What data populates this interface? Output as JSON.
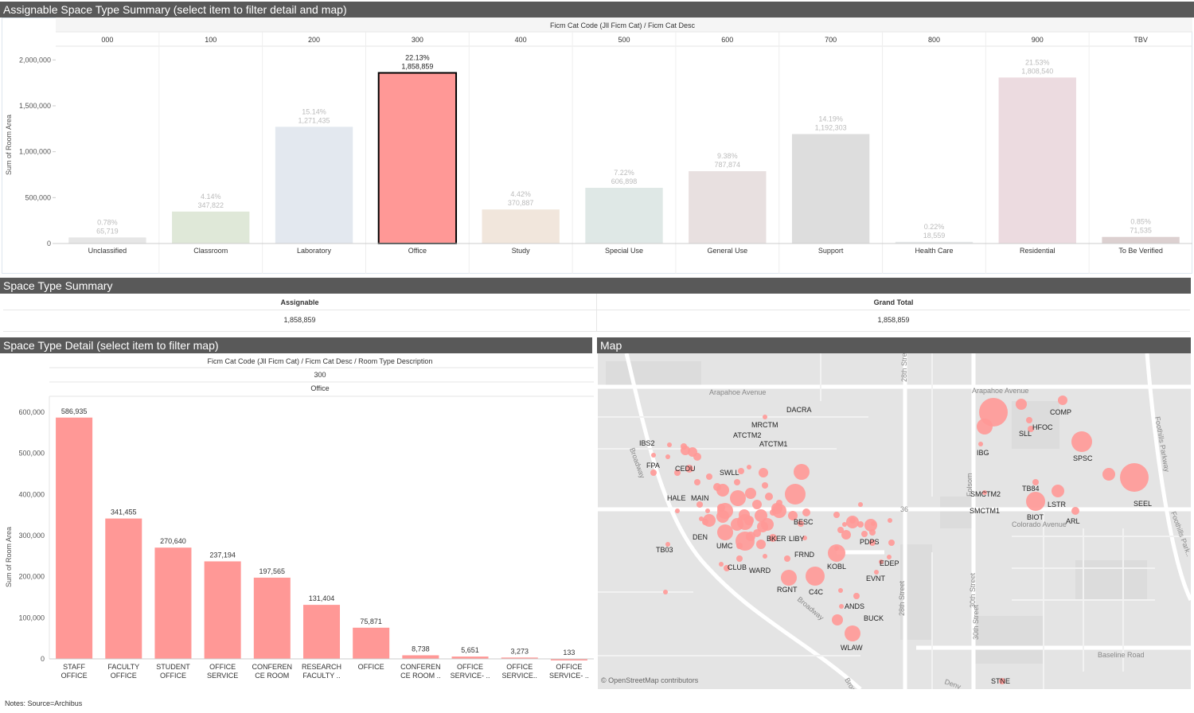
{
  "sections": {
    "assignable": "Assignable Space Type Summary (select item to filter detail and map)",
    "space_summary": "Space Type Summary",
    "detail": "Space Type Detail (select item to filter map)",
    "map": "Map"
  },
  "top_chart": {
    "header": "Ficm Cat Code (Jll Ficm Cat)  /  Ficm Cat Desc",
    "ylabel": "Sum of Room Area",
    "yticks": [
      "2,000,000",
      "1,500,000",
      "1,000,000",
      "500,000",
      "0"
    ],
    "ymax": 2150000
  },
  "summary": {
    "col1_header": "Assignable",
    "col2_header": "Grand Total",
    "col1_value": "1,858,859",
    "col2_value": "1,858,859"
  },
  "detail_chart": {
    "header": "Ficm Cat Code (Jll Ficm Cat)  /  Ficm Cat Desc  /  Room Type Description",
    "code": "300",
    "desc": "Office",
    "ylabel": "Sum of Room Area",
    "yticks": [
      "600,000",
      "500,000",
      "400,000",
      "300,000",
      "200,000",
      "100,000",
      "0"
    ],
    "ymax": 600000
  },
  "chart_data": [
    {
      "type": "bar",
      "categories": [
        "000",
        "100",
        "200",
        "300",
        "400",
        "500",
        "600",
        "700",
        "800",
        "900",
        "TBV"
      ],
      "category_desc": [
        "Unclassified",
        "Classroom",
        "Laboratory",
        "Office",
        "Study",
        "Special Use",
        "General Use",
        "Support",
        "Health Care",
        "Residential",
        "To Be Verified"
      ],
      "values": [
        65719,
        347822,
        1271435,
        1858859,
        370887,
        606898,
        787874,
        1192303,
        18559,
        1808540,
        71535
      ],
      "value_labels": [
        "65,719",
        "347,822",
        "1,271,435",
        "1,858,859",
        "370,887",
        "606,898",
        "787,874",
        "1,192,303",
        "18,559",
        "1,808,540",
        "71,535"
      ],
      "pct_labels": [
        "0.78%",
        "4.14%",
        "15.14%",
        "22.13%",
        "4.42%",
        "7.22%",
        "9.38%",
        "14.19%",
        "0.22%",
        "21.53%",
        "0.85%"
      ],
      "colors": [
        "#e6e6e6",
        "#dfe8d8",
        "#e3e8ef",
        "#ff9896",
        "#f1e6dc",
        "#dfe8e6",
        "#e8e0e0",
        "#dddddd",
        "#e6e8ea",
        "#ecdbe0",
        "#dcd0d0"
      ],
      "selected_index": 3,
      "ylabel": "Sum of Room Area",
      "ylim": [
        0,
        2000000
      ]
    },
    {
      "type": "bar",
      "categories_line1": [
        "STAFF",
        "FACULTY",
        "STUDENT",
        "OFFICE",
        "CONFEREN",
        "RESEARCH",
        "OFFICE",
        "CONFEREN",
        "OFFICE",
        "OFFICE",
        "OFFICE"
      ],
      "categories_line2": [
        "OFFICE",
        "OFFICE",
        "OFFICE",
        "SERVICE",
        "CE ROOM",
        "FACULTY ..",
        "",
        "CE ROOM ..",
        "SERVICE- ..",
        "SERVICE..",
        "SERVICE- .."
      ],
      "values": [
        586935,
        341455,
        270640,
        237194,
        197565,
        131404,
        75871,
        8738,
        5651,
        3273,
        133
      ],
      "value_labels": [
        "586,935",
        "341,455",
        "270,640",
        "237,194",
        "197,565",
        "131,404",
        "75,871",
        "8,738",
        "5,651",
        "3,273",
        "133"
      ],
      "color": "#ff9896",
      "ylabel": "Sum of Room Area",
      "ylim": [
        0,
        600000
      ]
    }
  ],
  "map": {
    "streets": [
      "Arapahoe Avenue",
      "Arapahoe Avenue",
      "28th Street",
      "Broadway",
      "Colorado Avenue",
      "Baseline Road",
      "30th Street",
      "Foothills Parkway",
      "Foothills Park..",
      "Folsom",
      "28th Street",
      "30th Street",
      "Broadway",
      "Broadway",
      "36",
      "Denv"
    ],
    "buildings": [
      "DACRA",
      "MRCTM",
      "ATCTM2",
      "ATCTM1",
      "IBS2",
      "FPA",
      "CEDU",
      "SWLL",
      "HALE",
      "MAIN",
      "DEN",
      "UMC",
      "BKER",
      "LIBY",
      "BESC",
      "FRND",
      "PDPS",
      "TB03",
      "CLUB",
      "WARD",
      "RGNT",
      "C4C",
      "KOBL",
      "EDEP",
      "EVNT",
      "ANDS",
      "BUCK",
      "WLAW",
      "COMP",
      "HFOC",
      "SLL",
      "IBG",
      "SPSC",
      "SMCTM2",
      "SMCTM1",
      "TB84",
      "LSTR",
      "BIOT",
      "ARL",
      "SEEL",
      "STNE"
    ],
    "attribution": "© OpenStreetMap contributors"
  },
  "notes": "Notes: Source=Archibus"
}
